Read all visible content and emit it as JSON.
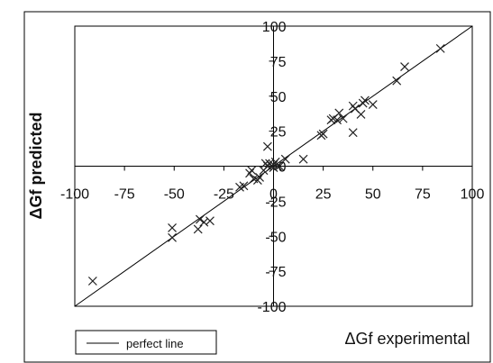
{
  "chart_data": {
    "type": "scatter",
    "xlabel": "ΔGf experimental",
    "ylabel": "ΔGf predicted",
    "xlim": [
      -100,
      100
    ],
    "ylim": [
      -100,
      100
    ],
    "x_ticks": [
      "-100",
      "-75",
      "-50",
      "-25",
      "0",
      "25",
      "50",
      "75",
      "100"
    ],
    "y_ticks": [
      "100",
      "75",
      "50",
      "25",
      "0",
      "-25",
      "-50",
      "-75",
      "-100"
    ],
    "grid": false,
    "legend": {
      "position": "bottom-left",
      "entries": [
        "perfect line"
      ]
    },
    "series": [
      {
        "name": "perfect line",
        "type": "line",
        "x": [
          -100,
          100
        ],
        "y": [
          -100,
          100
        ]
      },
      {
        "type": "scatter",
        "marker": "x",
        "x": [
          -91,
          -51,
          -51,
          -38,
          -37,
          -35,
          -32,
          -17,
          -15,
          -12,
          -11,
          -10,
          -8,
          -7,
          -5,
          -4,
          -3,
          -3,
          -2,
          -1,
          0,
          0,
          1,
          2,
          3,
          6,
          15,
          24,
          25,
          29,
          30,
          32,
          33,
          35,
          40,
          40,
          41,
          44,
          45,
          46,
          50,
          62,
          66,
          84
        ],
        "y": [
          -82,
          -44,
          -51,
          -45,
          -38,
          -40,
          -39,
          -15,
          -14,
          -5,
          -3,
          -9,
          -10,
          -8,
          -3,
          2,
          0,
          14,
          2,
          0,
          1,
          -1,
          3,
          0,
          0,
          5,
          5,
          22,
          23,
          33,
          34,
          33,
          38,
          34,
          43,
          24,
          41,
          37,
          45,
          47,
          44,
          61,
          71,
          84
        ]
      }
    ]
  }
}
